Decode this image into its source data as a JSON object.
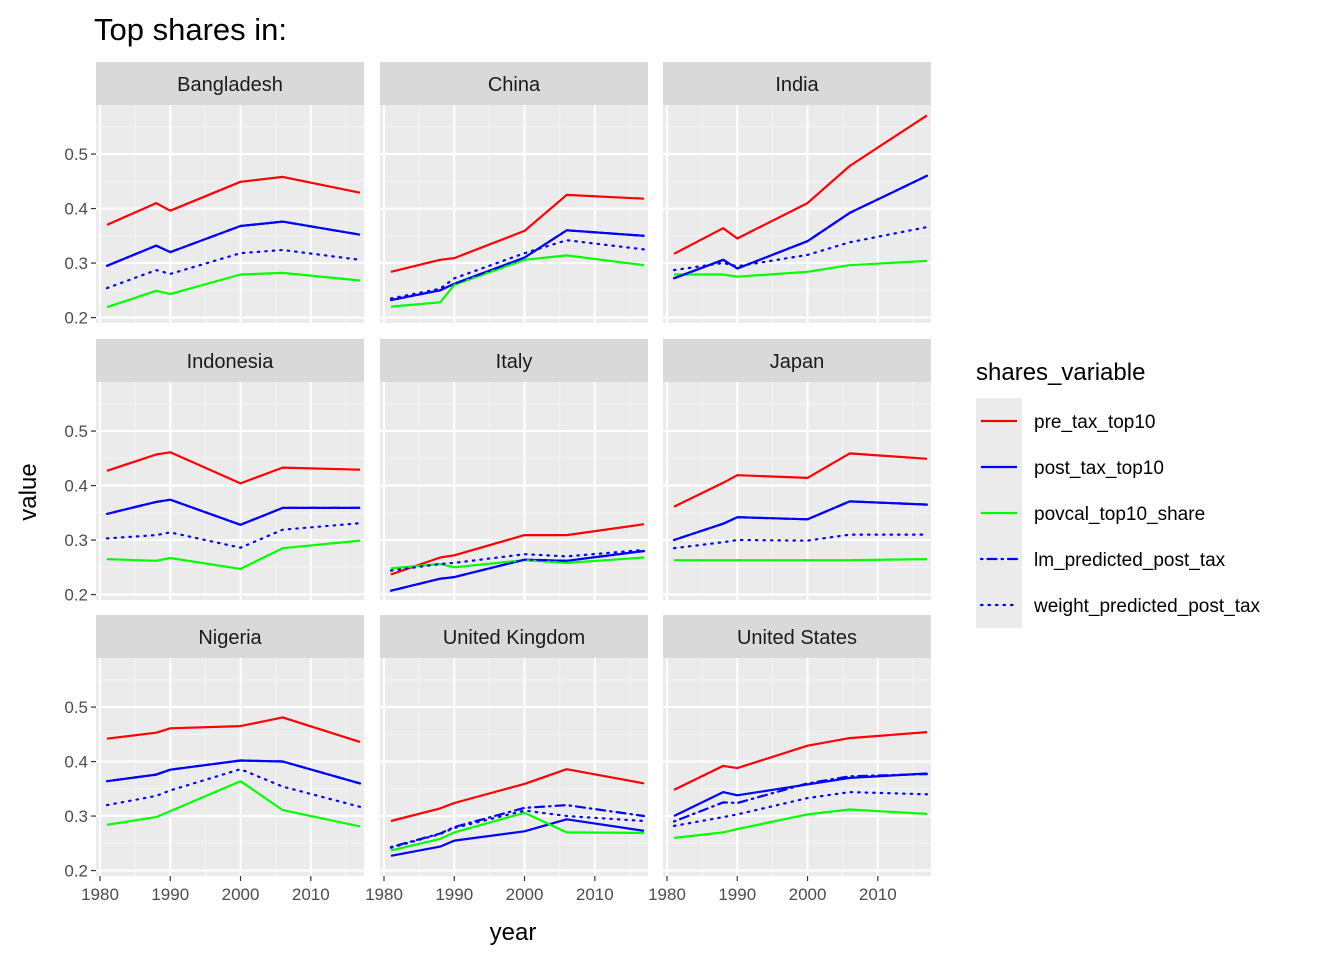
{
  "chart_data": {
    "type": "line",
    "title": "Top shares in:",
    "xlabel": "year",
    "ylabel": "value",
    "xlim": [
      1980,
      2017
    ],
    "ylim": [
      0.19,
      0.59
    ],
    "x_ticks": [
      1980,
      1990,
      2000,
      2010
    ],
    "y_ticks": [
      0.2,
      0.3,
      0.4,
      0.5
    ],
    "grid": true,
    "facet_layout": "3x3",
    "legend": {
      "title": "shares_variable",
      "position": "right",
      "entries": [
        {
          "name": "pre_tax_top10",
          "color": "#ff0000",
          "dash": "solid"
        },
        {
          "name": "post_tax_top10",
          "color": "#0000ff",
          "dash": "solid"
        },
        {
          "name": "povcal_top10_share",
          "color": "#00ff00",
          "dash": "solid"
        },
        {
          "name": "lm_predicted_post_tax",
          "color": "#0000ff",
          "dash": "dotdash"
        },
        {
          "name": "weight_predicted_post_tax",
          "color": "#0000ff",
          "dash": "dotted"
        }
      ]
    },
    "x": [
      1981,
      1988,
      1990,
      2000,
      2006,
      2017
    ],
    "panels": [
      {
        "name": "Bangladesh",
        "series": [
          {
            "name": "pre_tax_top10",
            "values": [
              0.37,
              0.41,
              0.396,
              0.449,
              0.458,
              0.429
            ]
          },
          {
            "name": "post_tax_top10",
            "values": [
              0.295,
              0.332,
              0.32,
              0.368,
              0.376,
              0.352
            ]
          },
          {
            "name": "povcal_top10_share",
            "values": [
              0.219,
              0.249,
              0.243,
              0.279,
              0.282,
              0.268
            ]
          },
          {
            "name": "lm_predicted_post_tax",
            "values": [
              0.295,
              0.332,
              0.32,
              0.368,
              0.376,
              0.352
            ]
          },
          {
            "name": "weight_predicted_post_tax",
            "values": [
              0.254,
              0.287,
              0.28,
              0.318,
              0.324,
              0.306
            ]
          }
        ]
      },
      {
        "name": "China",
        "series": [
          {
            "name": "pre_tax_top10",
            "values": [
              0.284,
              0.306,
              0.309,
              0.359,
              0.425,
              0.418
            ]
          },
          {
            "name": "post_tax_top10",
            "values": [
              0.232,
              0.25,
              0.262,
              0.31,
              0.36,
              0.35
            ]
          },
          {
            "name": "povcal_top10_share",
            "values": [
              0.22,
              0.228,
              0.26,
              0.306,
              0.314,
              0.296
            ]
          },
          {
            "name": "lm_predicted_post_tax",
            "values": [
              0.232,
              0.25,
              0.262,
              0.31,
              0.36,
              0.35
            ]
          },
          {
            "name": "weight_predicted_post_tax",
            "values": [
              0.235,
              0.253,
              0.272,
              0.318,
              0.342,
              0.325
            ]
          }
        ]
      },
      {
        "name": "India",
        "series": [
          {
            "name": "pre_tax_top10",
            "values": [
              0.317,
              0.364,
              0.345,
              0.41,
              0.478,
              0.571
            ]
          },
          {
            "name": "post_tax_top10",
            "values": [
              0.272,
              0.306,
              0.29,
              0.34,
              0.392,
              0.46
            ]
          },
          {
            "name": "povcal_top10_share",
            "values": [
              0.279,
              0.279,
              0.275,
              0.284,
              0.296,
              0.304
            ]
          },
          {
            "name": "lm_predicted_post_tax",
            "values": [
              0.272,
              0.306,
              0.29,
              0.34,
              0.392,
              0.46
            ]
          },
          {
            "name": "weight_predicted_post_tax",
            "values": [
              0.287,
              0.3,
              0.294,
              0.315,
              0.338,
              0.366
            ]
          }
        ]
      },
      {
        "name": "Indonesia",
        "series": [
          {
            "name": "pre_tax_top10",
            "values": [
              0.427,
              0.457,
              0.461,
              0.404,
              0.433,
              0.429
            ]
          },
          {
            "name": "post_tax_top10",
            "values": [
              0.348,
              0.37,
              0.374,
              0.328,
              0.359,
              0.359
            ]
          },
          {
            "name": "povcal_top10_share",
            "values": [
              0.265,
              0.262,
              0.267,
              0.247,
              0.285,
              0.299
            ]
          },
          {
            "name": "lm_predicted_post_tax",
            "values": [
              0.348,
              0.37,
              0.374,
              0.328,
              0.359,
              0.359
            ]
          },
          {
            "name": "weight_predicted_post_tax",
            "values": [
              0.303,
              0.309,
              0.314,
              0.286,
              0.319,
              0.331
            ]
          }
        ]
      },
      {
        "name": "Italy",
        "series": [
          {
            "name": "pre_tax_top10",
            "values": [
              0.237,
              0.268,
              0.272,
              0.309,
              0.309,
              0.329
            ]
          },
          {
            "name": "post_tax_top10",
            "values": [
              0.207,
              0.229,
              0.232,
              0.264,
              0.262,
              0.28
            ]
          },
          {
            "name": "povcal_top10_share",
            "values": [
              0.248,
              0.256,
              0.25,
              0.263,
              0.258,
              0.268
            ]
          },
          {
            "name": "lm_predicted_post_tax",
            "values": [
              0.207,
              0.229,
              0.232,
              0.264,
              0.262,
              0.28
            ]
          },
          {
            "name": "weight_predicted_post_tax",
            "values": [
              0.244,
              0.256,
              0.258,
              0.274,
              0.27,
              0.282
            ]
          }
        ]
      },
      {
        "name": "Japan",
        "series": [
          {
            "name": "pre_tax_top10",
            "values": [
              0.361,
              0.405,
              0.419,
              0.414,
              0.459,
              0.449
            ]
          },
          {
            "name": "post_tax_top10",
            "values": [
              0.3,
              0.33,
              0.342,
              0.338,
              0.371,
              0.365
            ]
          },
          {
            "name": "povcal_top10_share",
            "values": [
              0.263,
              0.263,
              0.263,
              0.263,
              0.263,
              0.265
            ]
          },
          {
            "name": "lm_predicted_post_tax",
            "values": [
              0.3,
              0.33,
              0.342,
              0.338,
              0.371,
              0.365
            ]
          },
          {
            "name": "weight_predicted_post_tax",
            "values": [
              0.285,
              0.296,
              0.3,
              0.299,
              0.31,
              0.31
            ]
          }
        ]
      },
      {
        "name": "Nigeria",
        "series": [
          {
            "name": "pre_tax_top10",
            "values": [
              0.442,
              0.453,
              0.461,
              0.465,
              0.481,
              0.436
            ]
          },
          {
            "name": "post_tax_top10",
            "values": [
              0.364,
              0.376,
              0.385,
              0.402,
              0.4,
              0.36
            ]
          },
          {
            "name": "povcal_top10_share",
            "values": [
              0.284,
              0.298,
              0.309,
              0.364,
              0.311,
              0.281
            ]
          },
          {
            "name": "lm_predicted_post_tax",
            "values": [
              0.364,
              0.376,
              0.385,
              0.402,
              0.4,
              0.36
            ]
          },
          {
            "name": "weight_predicted_post_tax",
            "values": [
              0.32,
              0.337,
              0.347,
              0.386,
              0.354,
              0.317
            ]
          }
        ]
      },
      {
        "name": "United Kingdom",
        "series": [
          {
            "name": "pre_tax_top10",
            "values": [
              0.291,
              0.314,
              0.324,
              0.359,
              0.386,
              0.36
            ]
          },
          {
            "name": "post_tax_top10",
            "values": [
              0.227,
              0.244,
              0.255,
              0.272,
              0.294,
              0.273
            ]
          },
          {
            "name": "povcal_top10_share",
            "values": [
              0.237,
              0.258,
              0.27,
              0.306,
              0.27,
              0.269
            ]
          },
          {
            "name": "lm_predicted_post_tax",
            "values": [
              0.243,
              0.268,
              0.28,
              0.315,
              0.32,
              0.3
            ]
          },
          {
            "name": "weight_predicted_post_tax",
            "values": [
              0.242,
              0.267,
              0.278,
              0.31,
              0.3,
              0.291
            ]
          }
        ]
      },
      {
        "name": "United States",
        "series": [
          {
            "name": "pre_tax_top10",
            "values": [
              0.348,
              0.392,
              0.388,
              0.429,
              0.443,
              0.454
            ]
          },
          {
            "name": "post_tax_top10",
            "values": [
              0.3,
              0.344,
              0.338,
              0.358,
              0.37,
              0.378
            ]
          },
          {
            "name": "povcal_top10_share",
            "values": [
              0.26,
              0.27,
              0.276,
              0.303,
              0.312,
              0.304
            ]
          },
          {
            "name": "lm_predicted_post_tax",
            "values": [
              0.29,
              0.325,
              0.324,
              0.36,
              0.373,
              0.377
            ]
          },
          {
            "name": "weight_predicted_post_tax",
            "values": [
              0.282,
              0.298,
              0.303,
              0.333,
              0.344,
              0.34
            ]
          }
        ]
      }
    ]
  }
}
